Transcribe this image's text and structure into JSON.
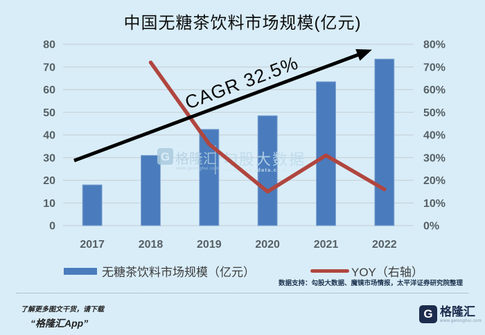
{
  "page": {
    "background": "#d9edf8"
  },
  "chart_data": {
    "type": "bar",
    "title": "中国无糖茶饮料市场规模(亿元)",
    "categories": [
      "2017",
      "2018",
      "2019",
      "2020",
      "2021",
      "2022"
    ],
    "series": [
      {
        "name": "无糖茶饮料市场规模（亿元）",
        "type": "bar",
        "axis": "left",
        "values": [
          18,
          31,
          42.5,
          48.5,
          63.5,
          73.5
        ],
        "color": "#4a7cbd"
      },
      {
        "name": "YOY（右轴）",
        "type": "line",
        "axis": "right",
        "unit": "%",
        "values": [
          null,
          72,
          36,
          15,
          31,
          16
        ],
        "color": "#b0463f"
      }
    ],
    "left_axis": {
      "min": 0,
      "max": 80,
      "step": 10,
      "ticks": [
        "0",
        "10",
        "20",
        "30",
        "40",
        "50",
        "60",
        "70",
        "80"
      ]
    },
    "right_axis": {
      "min": 0,
      "max": 80,
      "step": 10,
      "ticks": [
        "0%",
        "10%",
        "20%",
        "30%",
        "40%",
        "50%",
        "60%",
        "70%",
        "80%"
      ]
    },
    "annotation": {
      "text": "CAGR 32.5%"
    },
    "grid": true,
    "legend_position": "bottom"
  },
  "watermark": {
    "logo_letter": "G",
    "brand": "格隆汇",
    "brand_url": "www.gelonghui.com",
    "data_brand": "勾股大数据",
    "data_url": "www.gogudata.com"
  },
  "source_note": "数据支持：勾股大数据、魔镜市场情报，太平洋证券研究院整理",
  "footer": {
    "promo_line1": "了解更多图文干货，请下载",
    "promo_line2": "“格隆汇App”",
    "logo_letter": "G",
    "logo_text": "格隆汇",
    "logo_url": "www.gelonghui.com"
  }
}
